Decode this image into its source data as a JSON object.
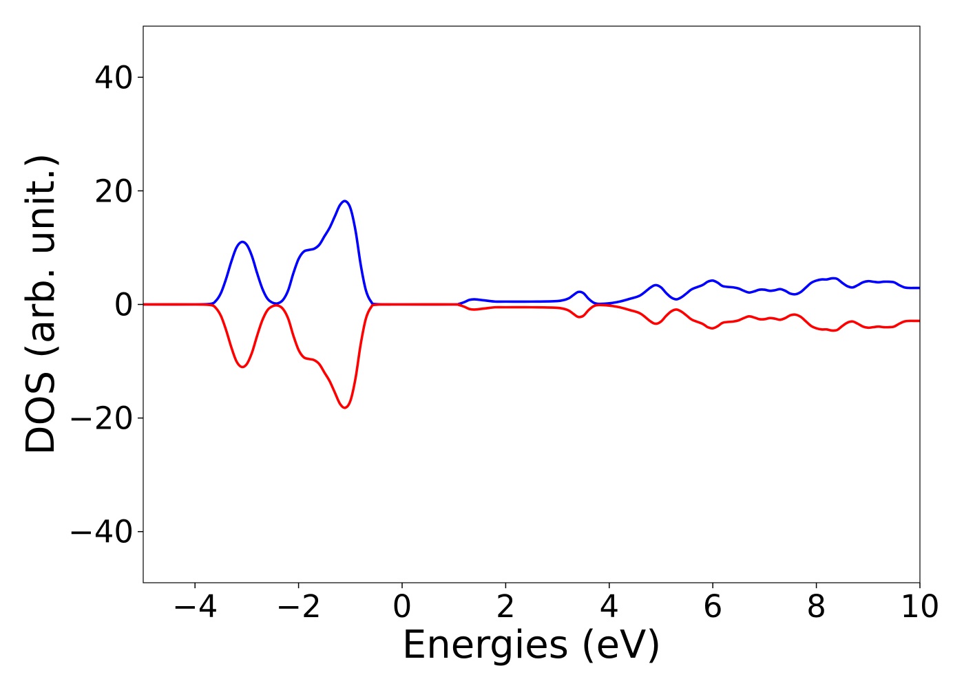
{
  "chart_data": {
    "type": "line",
    "xlabel": "Energies (eV)",
    "ylabel": "DOS (arb. unit.)",
    "xlim": [
      -5,
      10
    ],
    "ylim": [
      -49,
      49
    ],
    "x_ticks": [
      -4,
      -2,
      0,
      2,
      4,
      6,
      8,
      10
    ],
    "y_ticks": [
      -40,
      -20,
      0,
      20,
      40
    ],
    "x_tick_labels": [
      "−4",
      "−2",
      "0",
      "2",
      "4",
      "6",
      "8",
      "10"
    ],
    "y_tick_labels": [
      "−40",
      "−20",
      "0",
      "20",
      "40"
    ],
    "grid": false,
    "series": [
      {
        "color": "#0000ff",
        "points": [
          [
            -5.0,
            0
          ],
          [
            -4.0,
            0
          ],
          [
            -3.7,
            0.1
          ],
          [
            -3.6,
            0.6
          ],
          [
            -3.5,
            2.0
          ],
          [
            -3.4,
            4.5
          ],
          [
            -3.3,
            7.5
          ],
          [
            -3.2,
            10.0
          ],
          [
            -3.1,
            11.0
          ],
          [
            -3.0,
            10.5
          ],
          [
            -2.9,
            8.5
          ],
          [
            -2.8,
            5.5
          ],
          [
            -2.7,
            2.8
          ],
          [
            -2.6,
            1.0
          ],
          [
            -2.5,
            0.3
          ],
          [
            -2.4,
            0.2
          ],
          [
            -2.3,
            0.8
          ],
          [
            -2.2,
            2.5
          ],
          [
            -2.1,
            5.5
          ],
          [
            -2.0,
            8.0
          ],
          [
            -1.9,
            9.3
          ],
          [
            -1.8,
            9.6
          ],
          [
            -1.7,
            9.8
          ],
          [
            -1.6,
            10.5
          ],
          [
            -1.5,
            12.0
          ],
          [
            -1.4,
            13.5
          ],
          [
            -1.3,
            15.5
          ],
          [
            -1.2,
            17.5
          ],
          [
            -1.1,
            18.2
          ],
          [
            -1.0,
            17.0
          ],
          [
            -0.9,
            13.0
          ],
          [
            -0.8,
            7.0
          ],
          [
            -0.7,
            2.5
          ],
          [
            -0.6,
            0.5
          ],
          [
            -0.5,
            0.05
          ],
          [
            0.0,
            0
          ],
          [
            1.0,
            0
          ],
          [
            1.1,
            0.1
          ],
          [
            1.2,
            0.4
          ],
          [
            1.3,
            0.8
          ],
          [
            1.4,
            0.9
          ],
          [
            1.6,
            0.7
          ],
          [
            1.8,
            0.5
          ],
          [
            2.0,
            0.5
          ],
          [
            2.5,
            0.5
          ],
          [
            3.0,
            0.6
          ],
          [
            3.2,
            1.0
          ],
          [
            3.3,
            1.6
          ],
          [
            3.4,
            2.2
          ],
          [
            3.5,
            2.0
          ],
          [
            3.6,
            1.0
          ],
          [
            3.7,
            0.3
          ],
          [
            3.8,
            0.1
          ],
          [
            4.0,
            0.2
          ],
          [
            4.2,
            0.5
          ],
          [
            4.4,
            1.0
          ],
          [
            4.6,
            1.6
          ],
          [
            4.8,
            3.0
          ],
          [
            4.9,
            3.4
          ],
          [
            5.0,
            3.0
          ],
          [
            5.1,
            2.0
          ],
          [
            5.2,
            1.2
          ],
          [
            5.3,
            0.9
          ],
          [
            5.4,
            1.3
          ],
          [
            5.5,
            2.0
          ],
          [
            5.6,
            2.7
          ],
          [
            5.8,
            3.4
          ],
          [
            5.9,
            4.0
          ],
          [
            6.0,
            4.2
          ],
          [
            6.1,
            3.8
          ],
          [
            6.2,
            3.2
          ],
          [
            6.4,
            3.0
          ],
          [
            6.5,
            2.8
          ],
          [
            6.6,
            2.4
          ],
          [
            6.7,
            2.1
          ],
          [
            6.8,
            2.3
          ],
          [
            6.9,
            2.6
          ],
          [
            7.0,
            2.6
          ],
          [
            7.1,
            2.4
          ],
          [
            7.2,
            2.5
          ],
          [
            7.3,
            2.7
          ],
          [
            7.4,
            2.4
          ],
          [
            7.5,
            1.9
          ],
          [
            7.6,
            1.8
          ],
          [
            7.7,
            2.2
          ],
          [
            7.8,
            3.0
          ],
          [
            7.9,
            3.8
          ],
          [
            8.0,
            4.2
          ],
          [
            8.1,
            4.4
          ],
          [
            8.2,
            4.4
          ],
          [
            8.3,
            4.6
          ],
          [
            8.4,
            4.5
          ],
          [
            8.5,
            3.8
          ],
          [
            8.6,
            3.2
          ],
          [
            8.7,
            3.0
          ],
          [
            8.8,
            3.4
          ],
          [
            8.9,
            3.9
          ],
          [
            9.0,
            4.1
          ],
          [
            9.1,
            4.0
          ],
          [
            9.2,
            3.9
          ],
          [
            9.3,
            4.0
          ],
          [
            9.4,
            4.0
          ],
          [
            9.5,
            3.9
          ],
          [
            9.6,
            3.4
          ],
          [
            9.7,
            3.0
          ],
          [
            9.8,
            2.9
          ],
          [
            9.9,
            2.9
          ],
          [
            10.0,
            2.9
          ]
        ]
      },
      {
        "color": "#ff0000",
        "points": [
          [
            -5.0,
            0
          ],
          [
            -4.0,
            0
          ],
          [
            -3.7,
            -0.1
          ],
          [
            -3.6,
            -0.6
          ],
          [
            -3.5,
            -2.0
          ],
          [
            -3.4,
            -4.5
          ],
          [
            -3.3,
            -7.5
          ],
          [
            -3.2,
            -10.0
          ],
          [
            -3.1,
            -11.0
          ],
          [
            -3.0,
            -10.5
          ],
          [
            -2.9,
            -8.5
          ],
          [
            -2.8,
            -5.5
          ],
          [
            -2.7,
            -2.8
          ],
          [
            -2.6,
            -1.0
          ],
          [
            -2.5,
            -0.3
          ],
          [
            -2.4,
            -0.2
          ],
          [
            -2.3,
            -0.8
          ],
          [
            -2.2,
            -2.5
          ],
          [
            -2.1,
            -5.5
          ],
          [
            -2.0,
            -8.0
          ],
          [
            -1.9,
            -9.3
          ],
          [
            -1.8,
            -9.6
          ],
          [
            -1.7,
            -9.8
          ],
          [
            -1.6,
            -10.5
          ],
          [
            -1.5,
            -12.0
          ],
          [
            -1.4,
            -13.5
          ],
          [
            -1.3,
            -15.5
          ],
          [
            -1.2,
            -17.5
          ],
          [
            -1.1,
            -18.2
          ],
          [
            -1.0,
            -17.0
          ],
          [
            -0.9,
            -13.0
          ],
          [
            -0.8,
            -7.0
          ],
          [
            -0.7,
            -2.5
          ],
          [
            -0.6,
            -0.5
          ],
          [
            -0.5,
            -0.05
          ],
          [
            0.0,
            0
          ],
          [
            1.0,
            0
          ],
          [
            1.1,
            -0.1
          ],
          [
            1.2,
            -0.4
          ],
          [
            1.3,
            -0.8
          ],
          [
            1.4,
            -0.9
          ],
          [
            1.6,
            -0.7
          ],
          [
            1.8,
            -0.5
          ],
          [
            2.0,
            -0.5
          ],
          [
            2.5,
            -0.5
          ],
          [
            3.0,
            -0.6
          ],
          [
            3.2,
            -1.0
          ],
          [
            3.3,
            -1.6
          ],
          [
            3.4,
            -2.2
          ],
          [
            3.5,
            -2.0
          ],
          [
            3.6,
            -1.0
          ],
          [
            3.7,
            -0.3
          ],
          [
            3.8,
            -0.1
          ],
          [
            4.0,
            -0.2
          ],
          [
            4.2,
            -0.5
          ],
          [
            4.4,
            -1.0
          ],
          [
            4.6,
            -1.6
          ],
          [
            4.8,
            -3.0
          ],
          [
            4.9,
            -3.4
          ],
          [
            5.0,
            -3.0
          ],
          [
            5.1,
            -2.0
          ],
          [
            5.2,
            -1.2
          ],
          [
            5.3,
            -0.9
          ],
          [
            5.4,
            -1.3
          ],
          [
            5.5,
            -2.0
          ],
          [
            5.6,
            -2.7
          ],
          [
            5.8,
            -3.4
          ],
          [
            5.9,
            -4.0
          ],
          [
            6.0,
            -4.2
          ],
          [
            6.1,
            -3.8
          ],
          [
            6.2,
            -3.2
          ],
          [
            6.4,
            -3.0
          ],
          [
            6.5,
            -2.8
          ],
          [
            6.6,
            -2.4
          ],
          [
            6.7,
            -2.1
          ],
          [
            6.8,
            -2.3
          ],
          [
            6.9,
            -2.6
          ],
          [
            7.0,
            -2.6
          ],
          [
            7.1,
            -2.4
          ],
          [
            7.2,
            -2.5
          ],
          [
            7.3,
            -2.7
          ],
          [
            7.4,
            -2.4
          ],
          [
            7.5,
            -1.9
          ],
          [
            7.6,
            -1.8
          ],
          [
            7.7,
            -2.2
          ],
          [
            7.8,
            -3.0
          ],
          [
            7.9,
            -3.8
          ],
          [
            8.0,
            -4.2
          ],
          [
            8.1,
            -4.4
          ],
          [
            8.2,
            -4.4
          ],
          [
            8.3,
            -4.6
          ],
          [
            8.4,
            -4.5
          ],
          [
            8.5,
            -3.8
          ],
          [
            8.6,
            -3.2
          ],
          [
            8.7,
            -3.0
          ],
          [
            8.8,
            -3.4
          ],
          [
            8.9,
            -3.9
          ],
          [
            9.0,
            -4.1
          ],
          [
            9.1,
            -4.0
          ],
          [
            9.2,
            -3.9
          ],
          [
            9.3,
            -4.0
          ],
          [
            9.4,
            -4.0
          ],
          [
            9.5,
            -3.9
          ],
          [
            9.6,
            -3.4
          ],
          [
            9.7,
            -3.0
          ],
          [
            9.8,
            -2.9
          ],
          [
            9.9,
            -2.9
          ],
          [
            10.0,
            -2.9
          ]
        ]
      }
    ]
  }
}
